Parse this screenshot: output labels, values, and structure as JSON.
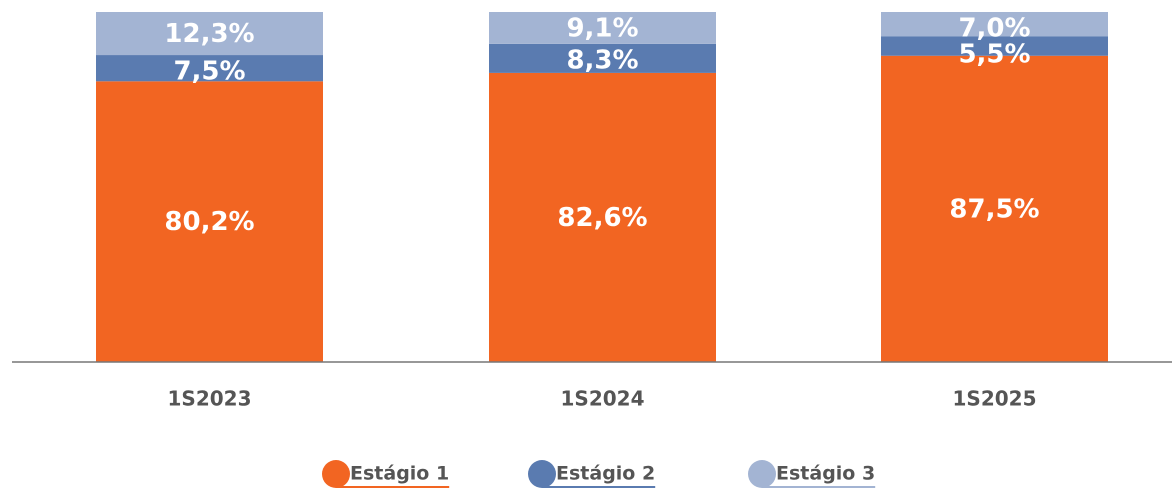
{
  "chart_data": {
    "type": "stacked_bar",
    "categories": [
      "1S2023",
      "1S2024",
      "1S2025"
    ],
    "series": [
      {
        "name": "Estágio 1",
        "color": "#f26522",
        "values": [
          80.2,
          82.6,
          87.5
        ],
        "value_labels": [
          "80,2%",
          "82,6%",
          "87,5%"
        ]
      },
      {
        "name": "Estágio 2",
        "color": "#5a7bb0",
        "values": [
          7.5,
          8.3,
          5.5
        ],
        "value_labels": [
          "7,5%",
          "8,3%",
          "5,5%"
        ]
      },
      {
        "name": "Estágio 3",
        "color": "#a3b4d3",
        "values": [
          12.3,
          9.1,
          7.0
        ],
        "value_labels": [
          "12,3%",
          "9,1%",
          "7,0%"
        ]
      }
    ],
    "ylim": [
      0,
      100
    ]
  }
}
